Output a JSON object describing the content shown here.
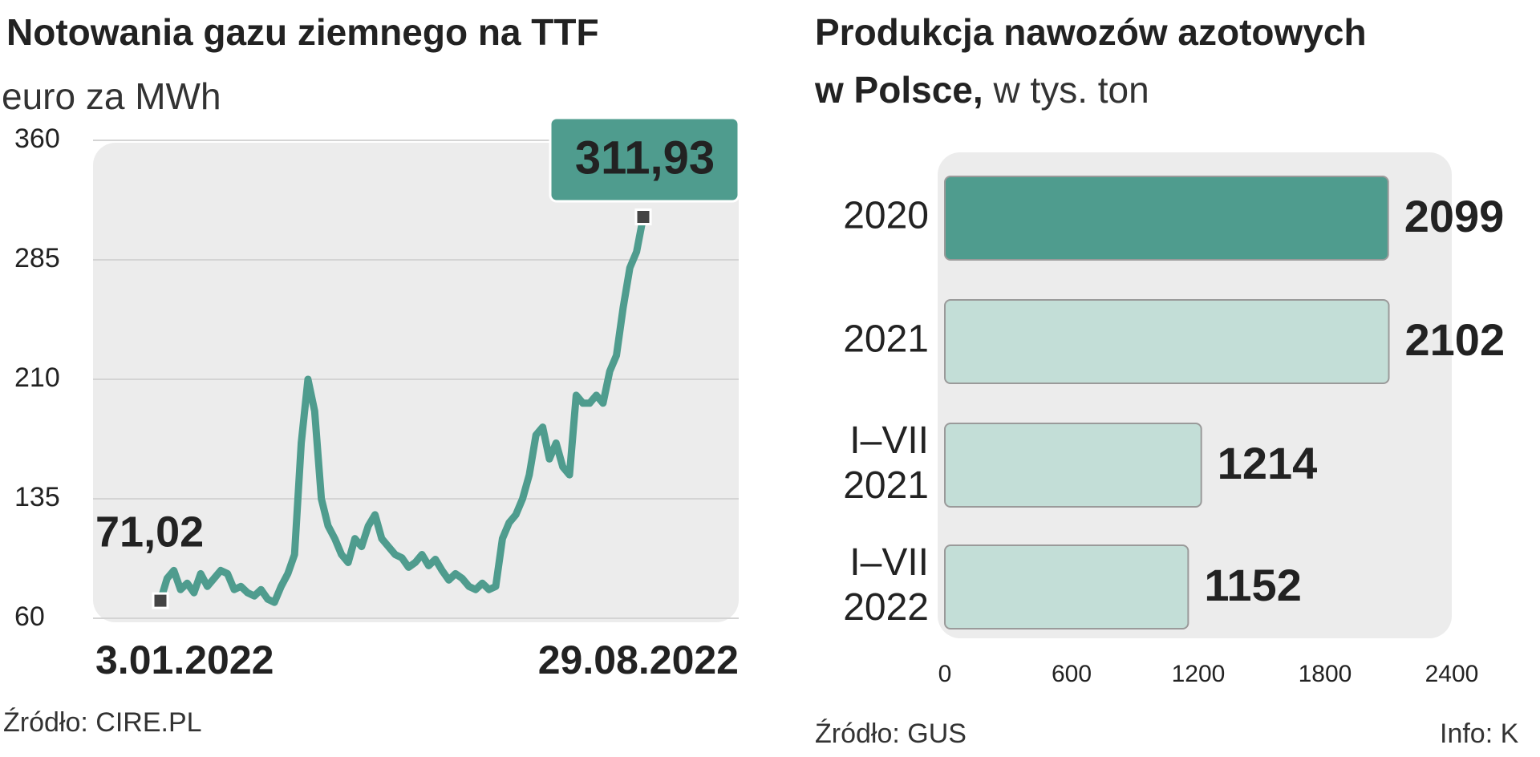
{
  "chart_data": [
    {
      "type": "line",
      "title": "Notowania gazu ziemnego na TTF",
      "subtitle": "euro za MWh",
      "categories": [
        "3.01.2022",
        null,
        null,
        null,
        null,
        null,
        null,
        null,
        null,
        null,
        null,
        null,
        null,
        null,
        null,
        null,
        null,
        null,
        null,
        null,
        null,
        null,
        null,
        null,
        null,
        null,
        null,
        null,
        null,
        null,
        null,
        null,
        null,
        null,
        null,
        null,
        null,
        null,
        null,
        null,
        null,
        null,
        null,
        null,
        null,
        null,
        null,
        null,
        null,
        null,
        null,
        null,
        null,
        null,
        null,
        null,
        null,
        null,
        null,
        null,
        null,
        null,
        null,
        null,
        null,
        null,
        null,
        null,
        null,
        null,
        null,
        null,
        "29.08.2022"
      ],
      "values": [
        71.02,
        85,
        90,
        78,
        82,
        76,
        88,
        80,
        85,
        90,
        88,
        78,
        80,
        76,
        74,
        78,
        72,
        70,
        80,
        88,
        100,
        170,
        210,
        190,
        135,
        118,
        110,
        100,
        95,
        110,
        105,
        118,
        125,
        110,
        105,
        100,
        98,
        92,
        95,
        100,
        93,
        97,
        90,
        84,
        88,
        85,
        80,
        78,
        82,
        78,
        80,
        110,
        120,
        125,
        135,
        150,
        175,
        180,
        160,
        170,
        155,
        150,
        200,
        195,
        195,
        200,
        195,
        215,
        225,
        255,
        280,
        290,
        311.93
      ],
      "value_labels": [
        "71,02",
        null,
        null,
        null,
        null,
        null,
        null,
        null,
        null,
        null,
        null,
        null,
        null,
        null,
        null,
        null,
        null,
        null,
        null,
        null,
        null,
        null,
        null,
        null,
        null,
        null,
        null,
        null,
        null,
        null,
        null,
        null,
        null,
        null,
        null,
        null,
        null,
        null,
        null,
        null,
        null,
        null,
        null,
        null,
        null,
        null,
        null,
        null,
        null,
        null,
        null,
        null,
        null,
        null,
        null,
        null,
        null,
        null,
        null,
        null,
        null,
        null,
        null,
        null,
        null,
        null,
        null,
        null,
        null,
        null,
        null,
        null,
        "311,93"
      ],
      "color": "#4f9c8e",
      "ylim": [
        60,
        360
      ],
      "yticks": [
        60,
        135,
        210,
        285,
        360
      ],
      "grid": true,
      "source": "Źródło: CIRE.PL"
    },
    {
      "type": "bar",
      "orientation": "horizontal",
      "title": "Produkcja nawozów azotowych w Polsce,",
      "subtitle": "w tys. ton",
      "categories": [
        "2020",
        "2021",
        "I–VII 2021",
        "I–VII 2022"
      ],
      "values": [
        2099,
        2102,
        1214,
        1152
      ],
      "colors": [
        "#4f9c8e",
        "#c3ded7",
        "#c3ded7",
        "#c3ded7"
      ],
      "xlim": [
        0,
        2400
      ],
      "xticks": [
        0,
        600,
        1200,
        1800,
        2400
      ],
      "source": "Źródło: GUS",
      "credit": "Info: K"
    }
  ]
}
